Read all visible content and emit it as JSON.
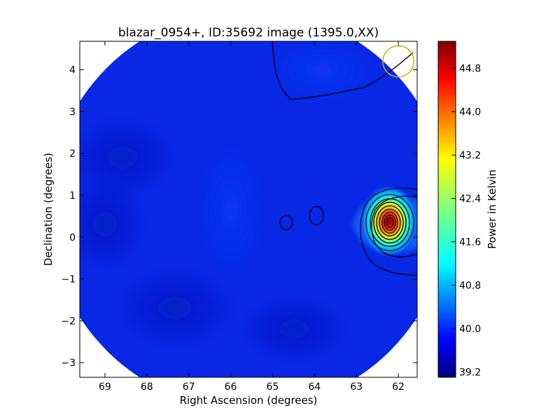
{
  "chart_data": {
    "type": "heatmap",
    "title": "blazar_0954+, ID:35692 image (1395.0,XX)",
    "xlabel": "Right Ascension (degrees)",
    "ylabel": "Declination (degrees)",
    "x_range": [
      69.6,
      61.55
    ],
    "y_range": [
      -3.35,
      4.68
    ],
    "x_ticks": [
      69,
      68,
      67,
      66,
      65,
      64,
      63,
      62
    ],
    "y_ticks": [
      -3,
      -2,
      -1,
      0,
      1,
      2,
      3,
      4
    ],
    "x_tick_labels": [
      "69",
      "68",
      "67",
      "66",
      "65",
      "64",
      "63",
      "62"
    ],
    "y_tick_labels": [
      "−3",
      "−2",
      "−1",
      "0",
      "1",
      "2",
      "3",
      "4"
    ],
    "colorbar": {
      "label": "Power in Kelvin",
      "range": [
        39.1,
        45.3
      ],
      "ticks": [
        39.2,
        40.0,
        40.8,
        41.6,
        42.4,
        43.2,
        44.0,
        44.8
      ],
      "tick_labels": [
        "39.2",
        "40.0",
        "40.8",
        "41.6",
        "42.4",
        "43.2",
        "44.0",
        "44.8"
      ],
      "colormap": "jet"
    },
    "background_level": 39.75,
    "field_of_view": "circular",
    "peak": {
      "ra": 62.25,
      "dec": 0.35,
      "value": 45.2
    },
    "secondary_sources": [
      {
        "ra": 64.65,
        "dec": 0.33,
        "value": 39.9
      },
      {
        "ra": 63.95,
        "dec": 0.5,
        "value": 39.95
      }
    ],
    "beam_marker": {
      "ra": 62.0,
      "dec": 4.2,
      "radius_deg": 0.37,
      "color": "#c8b400"
    },
    "grid": false
  }
}
